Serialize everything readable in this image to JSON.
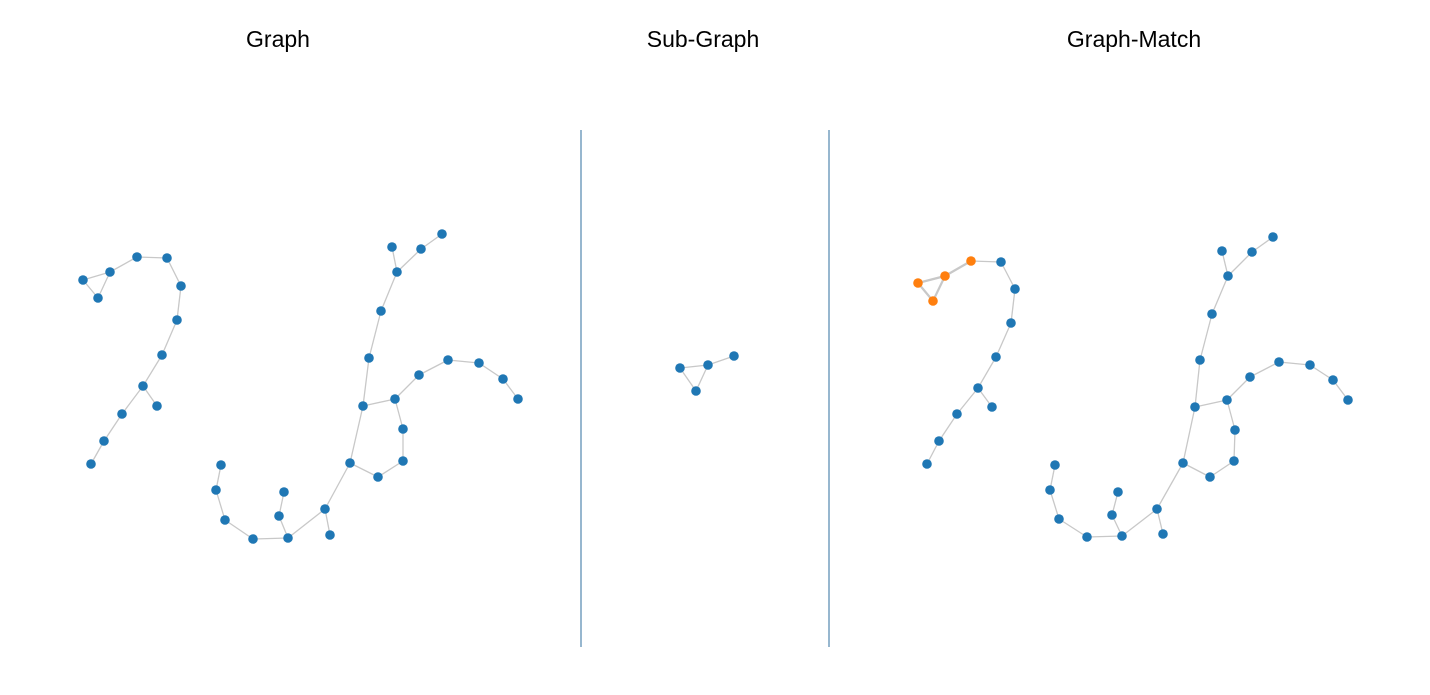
{
  "titles": {
    "graph": "Graph",
    "subgraph": "Sub-Graph",
    "match": "Graph-Match"
  },
  "colors": {
    "node": "#1f77b4",
    "highlight": "#ff7f0e",
    "edge": "#c8c8c8",
    "divider": "#2f6f9f"
  }
}
